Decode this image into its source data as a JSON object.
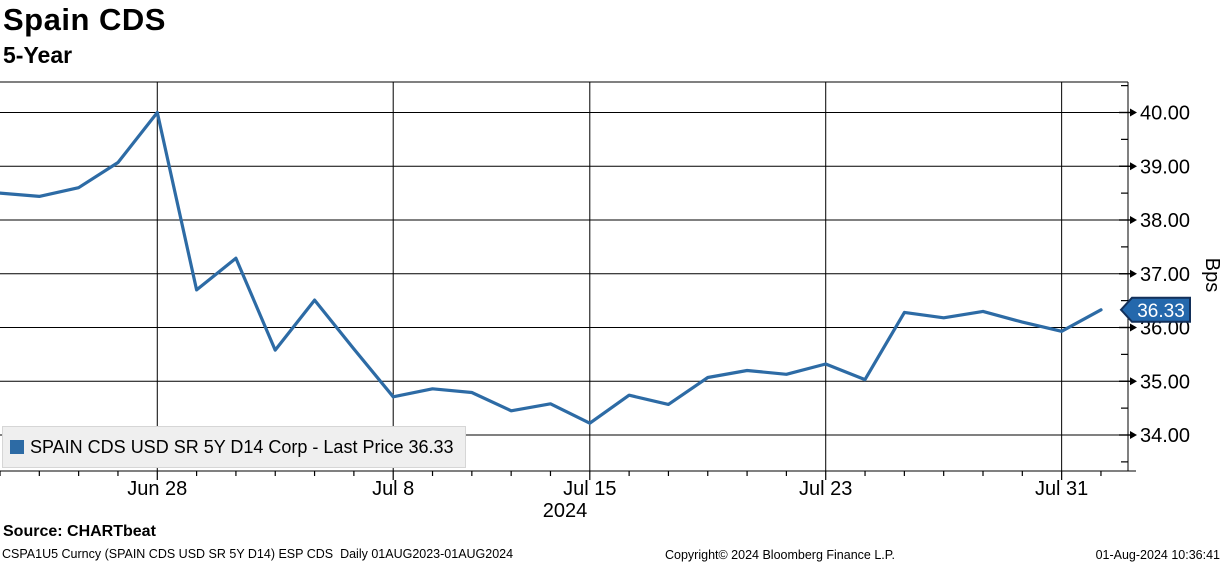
{
  "header": {
    "title": "Spain CDS",
    "subtitle": "5-Year"
  },
  "legend": {
    "label": "SPAIN CDS USD SR 5Y D14 Corp - Last Price 36.33"
  },
  "price_tag": {
    "value": "36.33"
  },
  "footer": {
    "source": "Source: CHARTbeat",
    "security_info": "CSPA1U5 Curncy (SPAIN CDS USD SR 5Y D14) ESP CDS  Daily 01AUG2023-01AUG2024",
    "copyright": "Copyright© 2024 Bloomberg Finance L.P.",
    "timestamp": "01-Aug-2024 10:36:41"
  },
  "colors": {
    "line": "#2d6ba5",
    "tag_fill": "#2468ac",
    "tag_border": "#13305a",
    "tag_text": "#ffffff",
    "grid": "#000000",
    "legend_bg": "#efefef"
  },
  "chart_data": {
    "type": "line",
    "title": "Spain CDS 5-Year",
    "xlabel": "",
    "ylabel": "Bps",
    "year_label": "2024",
    "grid": true,
    "legend_position": "bottom-left",
    "ylim": [
      33.33,
      40.57
    ],
    "x": [
      "Jun 24",
      "Jun 25",
      "Jun 26",
      "Jun 27",
      "Jun 28",
      "Jul 1",
      "Jul 2",
      "Jul 3",
      "Jul 4",
      "Jul 5",
      "Jul 8",
      "Jul 9",
      "Jul 10",
      "Jul 11",
      "Jul 12",
      "Jul 15",
      "Jul 16",
      "Jul 17",
      "Jul 18",
      "Jul 19",
      "Jul 22",
      "Jul 23",
      "Jul 24",
      "Jul 25",
      "Jul 26",
      "Jul 29",
      "Jul 30",
      "Jul 31",
      "Aug 1"
    ],
    "series": [
      {
        "name": "SPAIN CDS USD SR 5Y D14 Corp",
        "values": [
          38.5,
          38.44,
          38.6,
          39.07,
          40.0,
          36.7,
          37.29,
          35.58,
          36.51,
          35.6,
          34.71,
          34.86,
          34.79,
          34.45,
          34.58,
          34.22,
          34.74,
          34.57,
          35.07,
          35.2,
          35.13,
          35.32,
          35.03,
          36.28,
          36.18,
          36.3,
          36.1,
          35.93,
          36.33
        ]
      }
    ],
    "last_price": 36.33,
    "y_ticks": [
      {
        "v": 40,
        "label": "40.00"
      },
      {
        "v": 39,
        "label": "39.00"
      },
      {
        "v": 38,
        "label": "38.00"
      },
      {
        "v": 37,
        "label": "37.00"
      },
      {
        "v": 36,
        "label": "36.00"
      },
      {
        "v": 35,
        "label": "35.00"
      },
      {
        "v": 34,
        "label": "34.00"
      }
    ],
    "y_minor_ticks": [
      33.5,
      34.5,
      35.5,
      36.5,
      37.5,
      38.5,
      39.5,
      40.5
    ],
    "x_tick_labels": [
      {
        "index": 4,
        "label": "Jun 28"
      },
      {
        "index": 10,
        "label": "Jul 8"
      },
      {
        "index": 15,
        "label": "Jul 15"
      },
      {
        "index": 21,
        "label": "Jul 23"
      },
      {
        "index": 27,
        "label": "Jul 31"
      }
    ]
  }
}
